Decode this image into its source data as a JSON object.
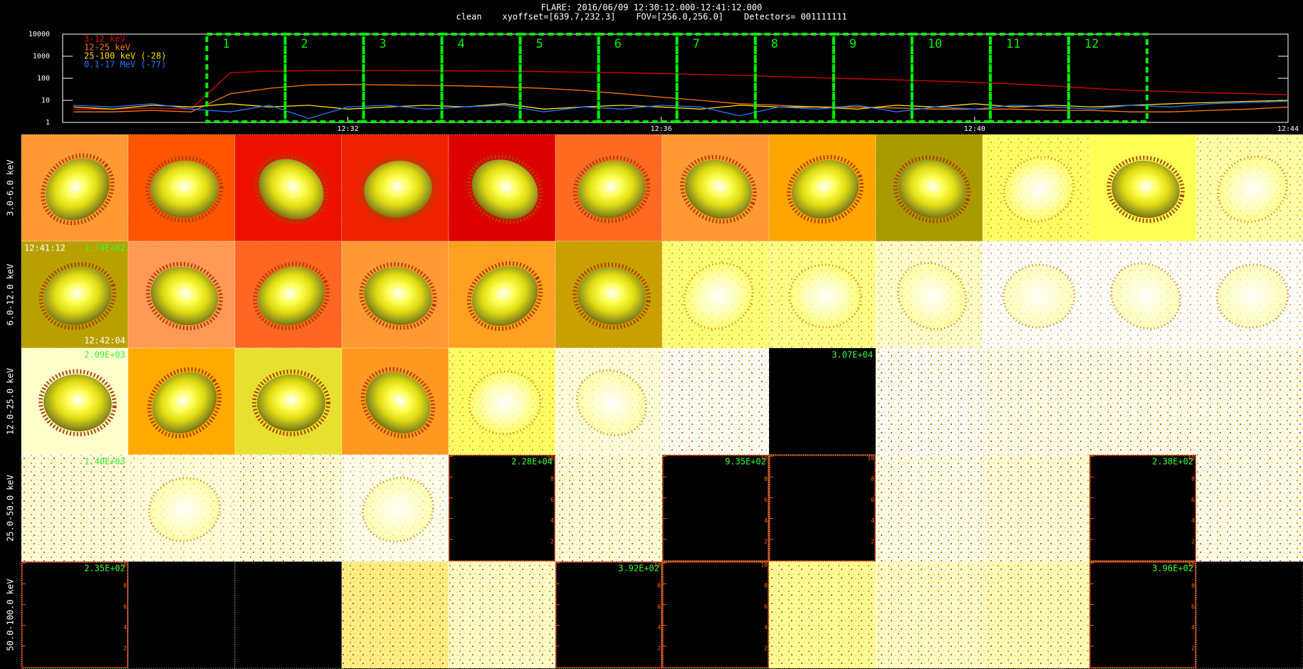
{
  "header": {
    "title": "FLARE: 2016/06/09 12:30:12.000-12:41:12.000",
    "subtitle": "clean    xyoffset=[639.7,232.3]    FOV=[256.0,256.0]    Detectors= 001111111"
  },
  "chart_data": {
    "type": "line",
    "log_y": true,
    "legend": "upper left",
    "x": [
      28.5,
      29,
      29.5,
      30,
      30.5,
      31,
      31.5,
      32,
      32.5,
      33,
      33.5,
      34,
      34.5,
      35,
      35.5,
      36,
      36.5,
      37,
      37.5,
      38,
      38.5,
      39,
      39.5,
      40,
      40.5,
      41,
      41.5,
      42,
      42.5,
      43,
      43.5,
      44
    ],
    "xlim": [
      28.36,
      44
    ],
    "xticks": [
      {
        "value": 32,
        "label": "12:32"
      },
      {
        "value": 36,
        "label": "12:36"
      },
      {
        "value": 40,
        "label": "12:40"
      },
      {
        "value": 44,
        "label": "12:44"
      }
    ],
    "ylim": [
      1,
      10000
    ],
    "yticks": [
      1,
      10,
      100,
      1000,
      10000
    ],
    "series": [
      {
        "name": "3-12 keV",
        "color": "#dd0000",
        "values": [
          4,
          4,
          4.5,
          4,
          180,
          210,
          220,
          225,
          225,
          220,
          215,
          210,
          200,
          190,
          180,
          165,
          150,
          135,
          120,
          105,
          95,
          85,
          75,
          65,
          55,
          45,
          35,
          28,
          25,
          22,
          20,
          18
        ]
      },
      {
        "name": "12-25 keV",
        "color": "#ff7700",
        "values": [
          3,
          3,
          3.5,
          3,
          20,
          35,
          50,
          52,
          50,
          48,
          45,
          40,
          35,
          28,
          20,
          14,
          10,
          7,
          6,
          5,
          5,
          4.5,
          4,
          4,
          4,
          3.5,
          3.5,
          3,
          3,
          3.5,
          4,
          5
        ]
      },
      {
        "name": "25-100 keV (-28)",
        "color": "#ffdd00",
        "values": [
          5,
          4,
          6,
          5,
          7,
          5,
          6,
          4,
          5,
          6,
          5,
          7,
          4,
          5,
          6,
          5,
          4,
          6,
          5,
          5,
          4,
          6,
          5,
          7,
          5,
          6,
          5,
          6,
          7,
          8,
          9,
          10
        ]
      },
      {
        "name": "0.1-17 MeV (-77)",
        "color": "#2277ff",
        "values": [
          6,
          5,
          7,
          4,
          3,
          6,
          1.5,
          5,
          6,
          4,
          5,
          6,
          3,
          5,
          4,
          6,
          5,
          2,
          5,
          4,
          6,
          3,
          5,
          4,
          6,
          5,
          4,
          6,
          5,
          7,
          8,
          9
        ]
      }
    ],
    "intervals": [
      {
        "label": "1",
        "start": 30.2,
        "end": 31.2
      },
      {
        "label": "2",
        "start": 31.2,
        "end": 32.2
      },
      {
        "label": "3",
        "start": 32.2,
        "end": 33.2
      },
      {
        "label": "4",
        "start": 33.2,
        "end": 34.2
      },
      {
        "label": "5",
        "start": 34.2,
        "end": 35.2
      },
      {
        "label": "6",
        "start": 35.2,
        "end": 36.2
      },
      {
        "label": "7",
        "start": 36.2,
        "end": 37.2
      },
      {
        "label": "8",
        "start": 37.2,
        "end": 38.2
      },
      {
        "label": "9",
        "start": 38.2,
        "end": 39.2
      },
      {
        "label": "10",
        "start": 39.2,
        "end": 40.2
      },
      {
        "label": "11",
        "start": 40.2,
        "end": 41.2
      },
      {
        "label": "12",
        "start": 41.2,
        "end": 42.2
      }
    ],
    "interval_color": "#00ee00"
  },
  "image_grid": {
    "axis_ticks": [
      2,
      4,
      6,
      8,
      10
    ],
    "rows": [
      {
        "label": "3.0-6.0 keV",
        "cells": [
          {
            "kind": "source",
            "color": "#ff9933"
          },
          {
            "kind": "source",
            "color": "#ff5500"
          },
          {
            "kind": "source",
            "color": "#ee1100"
          },
          {
            "kind": "source",
            "color": "#ee2200"
          },
          {
            "kind": "source",
            "color": "#dd0000"
          },
          {
            "kind": "source",
            "color": "#ff6a22"
          },
          {
            "kind": "source",
            "color": "#ff9933"
          },
          {
            "kind": "source",
            "color": "#ffa500"
          },
          {
            "kind": "source",
            "color": "#a89a00"
          },
          {
            "kind": "halo",
            "color": "#ffff66"
          },
          {
            "kind": "source",
            "color": "#ffff55"
          },
          {
            "kind": "halo",
            "color": "#ffffaa"
          }
        ]
      },
      {
        "label": "6.0-12.0 keV",
        "cells": [
          {
            "kind": "source",
            "color": "#b8a000",
            "labels": [
              {
                "text": "12:41:12",
                "corner": "top-left",
                "color": "#ffffff"
              },
              {
                "text": "1.74E+02",
                "corner": "top-right",
                "color": "#33ff33"
              },
              {
                "text": "12:42:04",
                "corner": "bottom-right",
                "color": "#ffffff"
              }
            ]
          },
          {
            "kind": "source",
            "color": "#ff9955"
          },
          {
            "kind": "source",
            "color": "#ff6622"
          },
          {
            "kind": "source",
            "color": "#ff9933"
          },
          {
            "kind": "source",
            "color": "#ffa020"
          },
          {
            "kind": "source",
            "color": "#c8a000"
          },
          {
            "kind": "halo",
            "color": "#ffff77"
          },
          {
            "kind": "halo",
            "color": "#ffff88"
          },
          {
            "kind": "halo",
            "color": "#ffffcc"
          },
          {
            "kind": "halo",
            "color": "#ffffff"
          },
          {
            "kind": "halo",
            "color": "#ffffff"
          },
          {
            "kind": "halo",
            "color": "#ffffff"
          }
        ]
      },
      {
        "label": "12.0-25.0 keV",
        "cells": [
          {
            "kind": "source",
            "color": "#ffffcc",
            "labels": [
              {
                "text": "2.09E+03",
                "corner": "top-right",
                "color": "#33ff33"
              }
            ]
          },
          {
            "kind": "source",
            "color": "#ffaa00"
          },
          {
            "kind": "source",
            "color": "#e8e030"
          },
          {
            "kind": "source",
            "color": "#ff9922"
          },
          {
            "kind": "halo",
            "color": "#ffff66"
          },
          {
            "kind": "halo",
            "color": "#ffffdd"
          },
          {
            "kind": "faint",
            "color": "#ffffff"
          },
          {
            "kind": "black",
            "color": "#000000",
            "labels": [
              {
                "text": "3.07E+04",
                "corner": "top-right",
                "color": "#33ff33"
              }
            ]
          },
          {
            "kind": "faint",
            "color": "#ffffff"
          },
          {
            "kind": "faint",
            "color": "#ffffee"
          },
          {
            "kind": "faint",
            "color": "#ffffee"
          },
          {
            "kind": "faint",
            "color": "#ffffee"
          }
        ]
      },
      {
        "label": "25.0-50.0 keV",
        "cells": [
          {
            "kind": "faint",
            "color": "#ffffdd",
            "labels": [
              {
                "text": "1.40E+03",
                "corner": "top-right",
                "color": "#33ff33"
              }
            ]
          },
          {
            "kind": "halo",
            "color": "#ffffdd"
          },
          {
            "kind": "faint",
            "color": "#ffffdd"
          },
          {
            "kind": "halo",
            "color": "#ffffee"
          },
          {
            "kind": "axes",
            "color": "#000000",
            "labels": [
              {
                "text": "2.28E+04",
                "corner": "top-right",
                "color": "#33ff33"
              }
            ]
          },
          {
            "kind": "faint",
            "color": "#ffffdd"
          },
          {
            "kind": "axes",
            "color": "#000000",
            "labels": [
              {
                "text": "9.35E+02",
                "corner": "top-right",
                "color": "#33ff33"
              }
            ]
          },
          {
            "kind": "axes",
            "color": "#000000"
          },
          {
            "kind": "faint",
            "color": "#ffffee"
          },
          {
            "kind": "faint",
            "color": "#ffffdd"
          },
          {
            "kind": "axes",
            "color": "#000000",
            "labels": [
              {
                "text": "2.38E+02",
                "corner": "top-right",
                "color": "#33ff33"
              }
            ]
          },
          {
            "kind": "faint",
            "color": "#ffffee"
          }
        ]
      },
      {
        "label": "50.0-100.0 keV",
        "cells": [
          {
            "kind": "axes",
            "color": "#000000",
            "labels": [
              {
                "text": "2.35E+02",
                "corner": "top-right",
                "color": "#33ff33"
              }
            ]
          },
          {
            "kind": "black",
            "color": "#000000"
          },
          {
            "kind": "black",
            "color": "#000000"
          },
          {
            "kind": "faint",
            "color": "#ffee88"
          },
          {
            "kind": "faint",
            "color": "#ffffcc"
          },
          {
            "kind": "axes",
            "color": "#000000",
            "labels": [
              {
                "text": "3.92E+02",
                "corner": "top-right",
                "color": "#33ff33"
              }
            ]
          },
          {
            "kind": "axes",
            "color": "#000000"
          },
          {
            "kind": "faint",
            "color": "#ffff99"
          },
          {
            "kind": "faint",
            "color": "#ffffcc"
          },
          {
            "kind": "faint",
            "color": "#ffffbb"
          },
          {
            "kind": "axes",
            "color": "#000000",
            "labels": [
              {
                "text": "3.96E+02",
                "corner": "top-right",
                "color": "#33ff33"
              }
            ]
          },
          {
            "kind": "black",
            "color": "#000000"
          }
        ]
      }
    ]
  }
}
